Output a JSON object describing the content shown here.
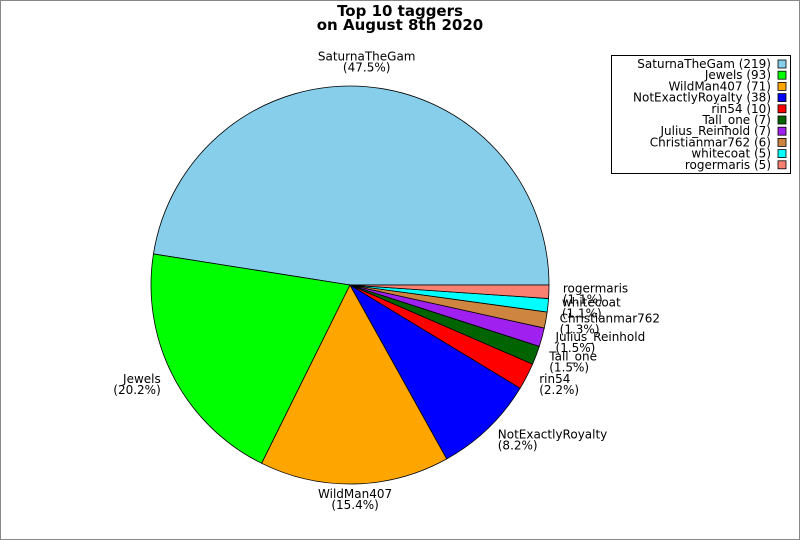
{
  "chart_data": {
    "type": "pie",
    "title": "Top 10 taggers",
    "subtitle": "on August 8th 2020",
    "categories": [
      "SaturnaTheGam",
      "Jewels",
      "WildMan407",
      "NotExactlyRoyalty",
      "rin54",
      "Tall_one",
      "Julius_Reinhold",
      "Christianmar762",
      "whitecoat",
      "rogermaris"
    ],
    "values": [
      219,
      93,
      71,
      38,
      10,
      7,
      7,
      6,
      5,
      5
    ],
    "percent_labels": [
      "(47.5%)",
      "(20.2%)",
      "(15.4%)",
      "(8.2%)",
      "(2.2%)",
      "(1.5%)",
      "(1.5%)",
      "(1.3%)",
      "(1.1%)",
      "(1.1%)"
    ],
    "legend_labels": [
      "SaturnaTheGam (219)",
      "Jewels (93)",
      "WildMan407 (71)",
      "NotExactlyRoyalty (38)",
      "rin54 (10)",
      "Tall_one (7)",
      "Julius_Reinhold (7)",
      "Christianmar762 (6)",
      "whitecoat (5)",
      "rogermaris (5)"
    ],
    "colors": [
      "#87ceeb",
      "#00ff00",
      "#ffa500",
      "#0000ff",
      "#ff0000",
      "#006400",
      "#a020f0",
      "#cd853f",
      "#00ffff",
      "#fa8072"
    ],
    "legend": "upper right"
  }
}
